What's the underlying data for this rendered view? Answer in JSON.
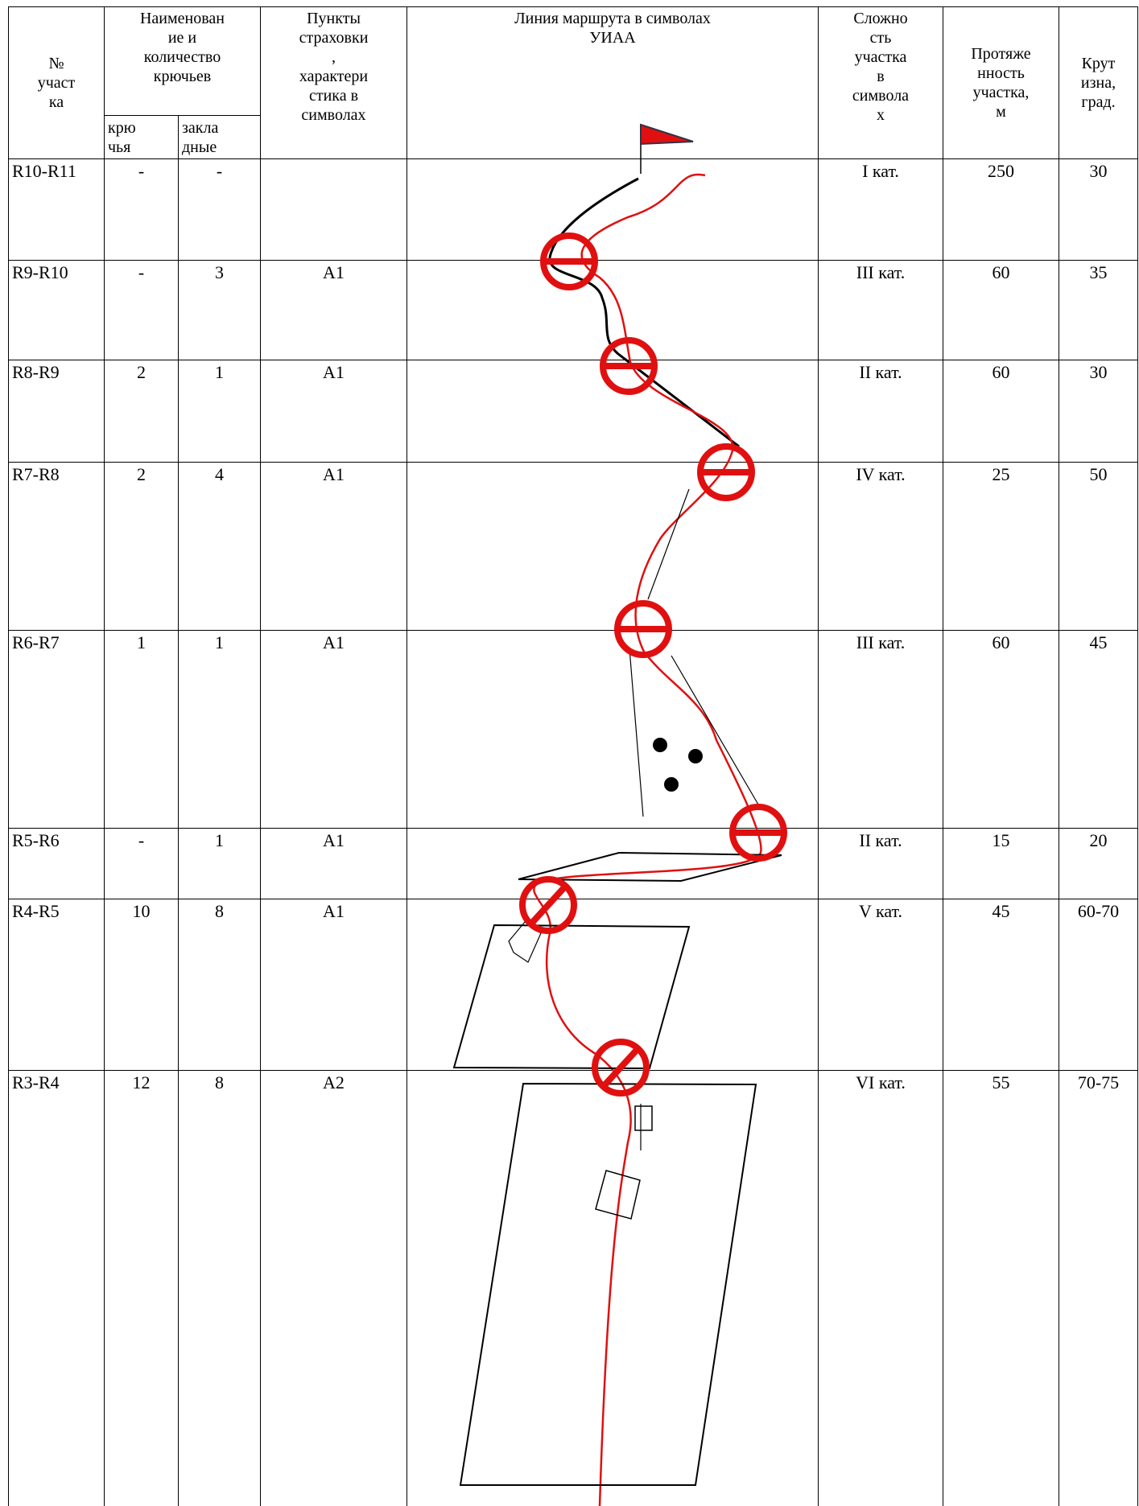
{
  "header": {
    "section": "№\nучаст\nка",
    "name_qty": "Наименован\nие и\nколичество\nкрючьев",
    "hooks": "крю\nчья",
    "chocks": "закла\nдные",
    "belay": "Пункты\nстраховки\n,\nхарактери\nстика в\nсимволах",
    "route": "Линия маршрута в символах\nУИАА",
    "difficulty": "Сложно\nсть\nучастка\nв\nсимвола\nх",
    "length": "Протяже\nнность\nучастка,\nм",
    "steepness": "Крут\nизна,\nград."
  },
  "rows": [
    [
      "R10-R11",
      "-",
      "-",
      null,
      "I кат.",
      250,
      30
    ],
    [
      "R9-R10",
      "-",
      3,
      "A1",
      "III кат.",
      60,
      35
    ],
    [
      "R8-R9",
      2,
      1,
      "A1",
      "II кат.",
      60,
      30
    ],
    [
      "R7-R8",
      2,
      4,
      "A1",
      "IV кат.",
      25,
      50
    ],
    [
      "R6-R7",
      1,
      1,
      "A1",
      "III кат.",
      60,
      45
    ],
    [
      "R5-R6",
      "-",
      1,
      "A1",
      "II кат.",
      15,
      20
    ],
    [
      "R4-R5",
      10,
      8,
      "A1",
      "V кат.",
      45,
      "60-70"
    ],
    [
      "R3-R4",
      12,
      8,
      "A2",
      "VI кат.",
      55,
      "70-75"
    ]
  ]
}
